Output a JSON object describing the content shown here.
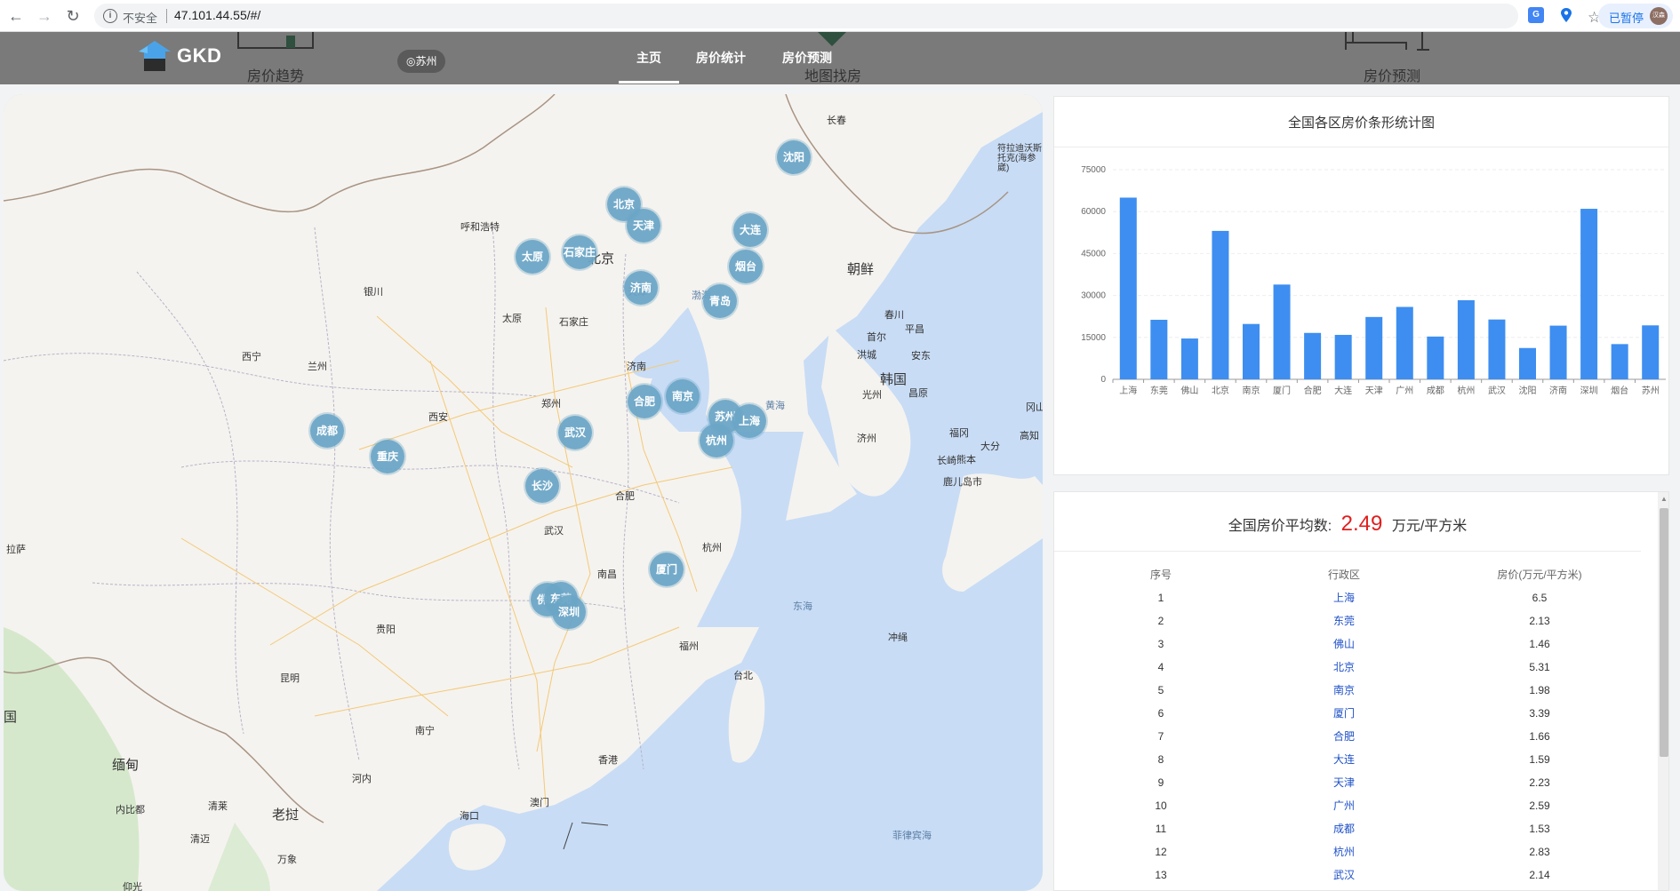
{
  "browser": {
    "security_label": "不安全",
    "url": "47.101.44.55/#/",
    "paused_label": "已暂停",
    "avatar_text": "汉森"
  },
  "header": {
    "logo_text": "GKD",
    "city": "◎苏州",
    "nav": [
      {
        "label": "主页",
        "active": true
      },
      {
        "label": "房价统计",
        "active": false
      },
      {
        "label": "房价预测",
        "active": false
      }
    ],
    "background_links": [
      "房价趋势",
      "地图找房",
      "房价预测"
    ]
  },
  "map": {
    "places": [
      {
        "label": "长春",
        "cls": ""
      },
      {
        "label": "呼和浩特",
        "cls": ""
      },
      {
        "label": "北京",
        "cls": "big"
      },
      {
        "label": "天津",
        "cls": ""
      },
      {
        "label": "银川",
        "cls": ""
      },
      {
        "label": "太原",
        "cls": ""
      },
      {
        "label": "石家庄",
        "cls": ""
      },
      {
        "label": "西宁",
        "cls": ""
      },
      {
        "label": "兰州",
        "cls": ""
      },
      {
        "label": "济南",
        "cls": ""
      },
      {
        "label": "西安",
        "cls": ""
      },
      {
        "label": "郑州",
        "cls": ""
      },
      {
        "label": "朝鲜",
        "cls": "big"
      },
      {
        "label": "韩国",
        "cls": "big"
      },
      {
        "label": "渤海",
        "cls": "sea"
      },
      {
        "label": "黄海",
        "cls": "sea"
      },
      {
        "label": "东海",
        "cls": "sea"
      },
      {
        "label": "合肥",
        "cls": ""
      },
      {
        "label": "武汉",
        "cls": ""
      },
      {
        "label": "杭州",
        "cls": ""
      },
      {
        "label": "南昌",
        "cls": ""
      },
      {
        "label": "贵阳",
        "cls": ""
      },
      {
        "label": "昆明",
        "cls": ""
      },
      {
        "label": "福州",
        "cls": ""
      },
      {
        "label": "台北",
        "cls": ""
      },
      {
        "label": "南宁",
        "cls": ""
      },
      {
        "label": "香港",
        "cls": ""
      },
      {
        "label": "澳门",
        "cls": ""
      },
      {
        "label": "海口",
        "cls": ""
      },
      {
        "label": "缅甸",
        "cls": "big"
      },
      {
        "label": "老挝",
        "cls": "big"
      },
      {
        "label": "河内",
        "cls": ""
      },
      {
        "label": "清莱",
        "cls": ""
      },
      {
        "label": "清迈",
        "cls": ""
      },
      {
        "label": "万象",
        "cls": ""
      },
      {
        "label": "内比都",
        "cls": ""
      },
      {
        "label": "仰光",
        "cls": ""
      },
      {
        "label": "冲绳",
        "cls": ""
      },
      {
        "label": "菲律宾海",
        "cls": "sea"
      },
      {
        "label": "首尔",
        "cls": ""
      },
      {
        "label": "平昌",
        "cls": ""
      },
      {
        "label": "春川",
        "cls": ""
      },
      {
        "label": "洪城",
        "cls": ""
      },
      {
        "label": "安东",
        "cls": ""
      },
      {
        "label": "光州",
        "cls": ""
      },
      {
        "label": "昌原",
        "cls": ""
      },
      {
        "label": "济州",
        "cls": ""
      },
      {
        "label": "福冈",
        "cls": ""
      },
      {
        "label": "熊本",
        "cls": ""
      },
      {
        "label": "大分",
        "cls": ""
      },
      {
        "label": "长崎",
        "cls": ""
      },
      {
        "label": "鹿儿岛市",
        "cls": ""
      },
      {
        "label": "高知",
        "cls": ""
      },
      {
        "label": "冈山",
        "cls": ""
      },
      {
        "label": "符拉迪沃斯托克(海参崴)",
        "cls": ""
      },
      {
        "label": "国",
        "cls": ""
      },
      {
        "label": "拉萨",
        "cls": ""
      }
    ],
    "clusters": [
      {
        "label": "沈阳"
      },
      {
        "label": "北京"
      },
      {
        "label": "天津"
      },
      {
        "label": "大连"
      },
      {
        "label": "太原"
      },
      {
        "label": "石家庄"
      },
      {
        "label": "烟台"
      },
      {
        "label": "济南"
      },
      {
        "label": "青岛"
      },
      {
        "label": "合肥"
      },
      {
        "label": "南京"
      },
      {
        "label": "苏州"
      },
      {
        "label": "上海"
      },
      {
        "label": "杭州"
      },
      {
        "label": "成都"
      },
      {
        "label": "武汉"
      },
      {
        "label": "重庆"
      },
      {
        "label": "长沙"
      },
      {
        "label": "厦门"
      },
      {
        "label": "佛山"
      },
      {
        "label": "东莞"
      },
      {
        "label": "深圳"
      }
    ]
  },
  "chart": {
    "title": "全国各区房价条形统计图"
  },
  "chart_data": {
    "type": "bar",
    "title": "全国各区房价条形统计图",
    "xlabel": "",
    "ylabel": "",
    "categories": [
      "上海",
      "东莞",
      "佛山",
      "北京",
      "南京",
      "厦门",
      "合肥",
      "大连",
      "天津",
      "广州",
      "成都",
      "杭州",
      "武汉",
      "沈阳",
      "济南",
      "深圳",
      "烟台",
      "苏州"
    ],
    "values": [
      65000,
      21300,
      14600,
      53100,
      19800,
      33900,
      16600,
      15900,
      22300,
      25900,
      15300,
      28300,
      21400,
      11200,
      19200,
      61000,
      12600,
      19300
    ],
    "yticks": [
      "0",
      "15000",
      "30000",
      "45000",
      "60000",
      "75000"
    ],
    "ylim": [
      0,
      75000
    ],
    "grid": true,
    "color": "#3d8ef0"
  },
  "summary": {
    "avg_label": "全国房价平均数:",
    "avg_value": "2.49",
    "avg_unit": "万元/平方米"
  },
  "table": {
    "headers": [
      "序号",
      "行政区",
      "房价(万元/平方米)"
    ],
    "rows": [
      [
        "1",
        "上海",
        "6.5"
      ],
      [
        "2",
        "东莞",
        "2.13"
      ],
      [
        "3",
        "佛山",
        "1.46"
      ],
      [
        "4",
        "北京",
        "5.31"
      ],
      [
        "5",
        "南京",
        "1.98"
      ],
      [
        "6",
        "厦门",
        "3.39"
      ],
      [
        "7",
        "合肥",
        "1.66"
      ],
      [
        "8",
        "大连",
        "1.59"
      ],
      [
        "9",
        "天津",
        "2.23"
      ],
      [
        "10",
        "广州",
        "2.59"
      ],
      [
        "11",
        "成都",
        "1.53"
      ],
      [
        "12",
        "杭州",
        "2.83"
      ],
      [
        "13",
        "武汉",
        "2.14"
      ]
    ]
  }
}
